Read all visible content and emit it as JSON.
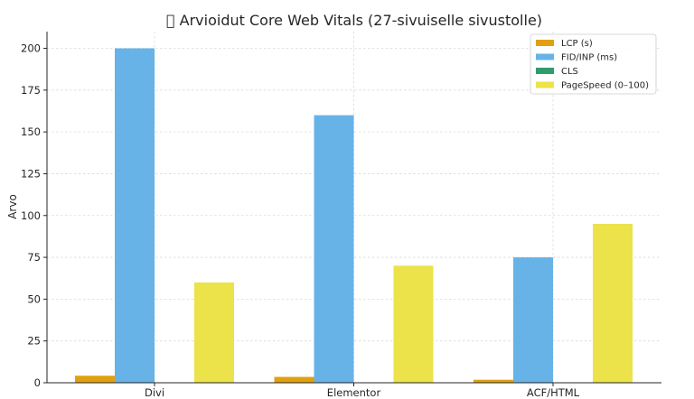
{
  "chart_data": {
    "type": "bar",
    "title": "󰔬 Arvioidut Core Web Vitals (27-sivuiselle sivustolle)",
    "xlabel": "",
    "ylabel": "Arvo",
    "categories": [
      "Divi",
      "Elementor",
      "ACF/HTML"
    ],
    "series": [
      {
        "name": "LCP (s)",
        "color": "#e0a00f",
        "values": [
          4.2,
          3.5,
          1.8
        ]
      },
      {
        "name": "FID/INP (ms)",
        "color": "#67b3e8",
        "values": [
          200,
          160,
          75
        ]
      },
      {
        "name": "CLS",
        "color": "#2e9c6b",
        "values": [
          0.25,
          0.2,
          0.05
        ]
      },
      {
        "name": "PageSpeed (0–100)",
        "color": "#ece24a",
        "values": [
          60,
          70,
          95
        ]
      }
    ],
    "ylim": [
      0,
      210
    ],
    "yticks": [
      0,
      25,
      50,
      75,
      100,
      125,
      150,
      175,
      200
    ],
    "grid": true,
    "legend_position": "top-right"
  }
}
